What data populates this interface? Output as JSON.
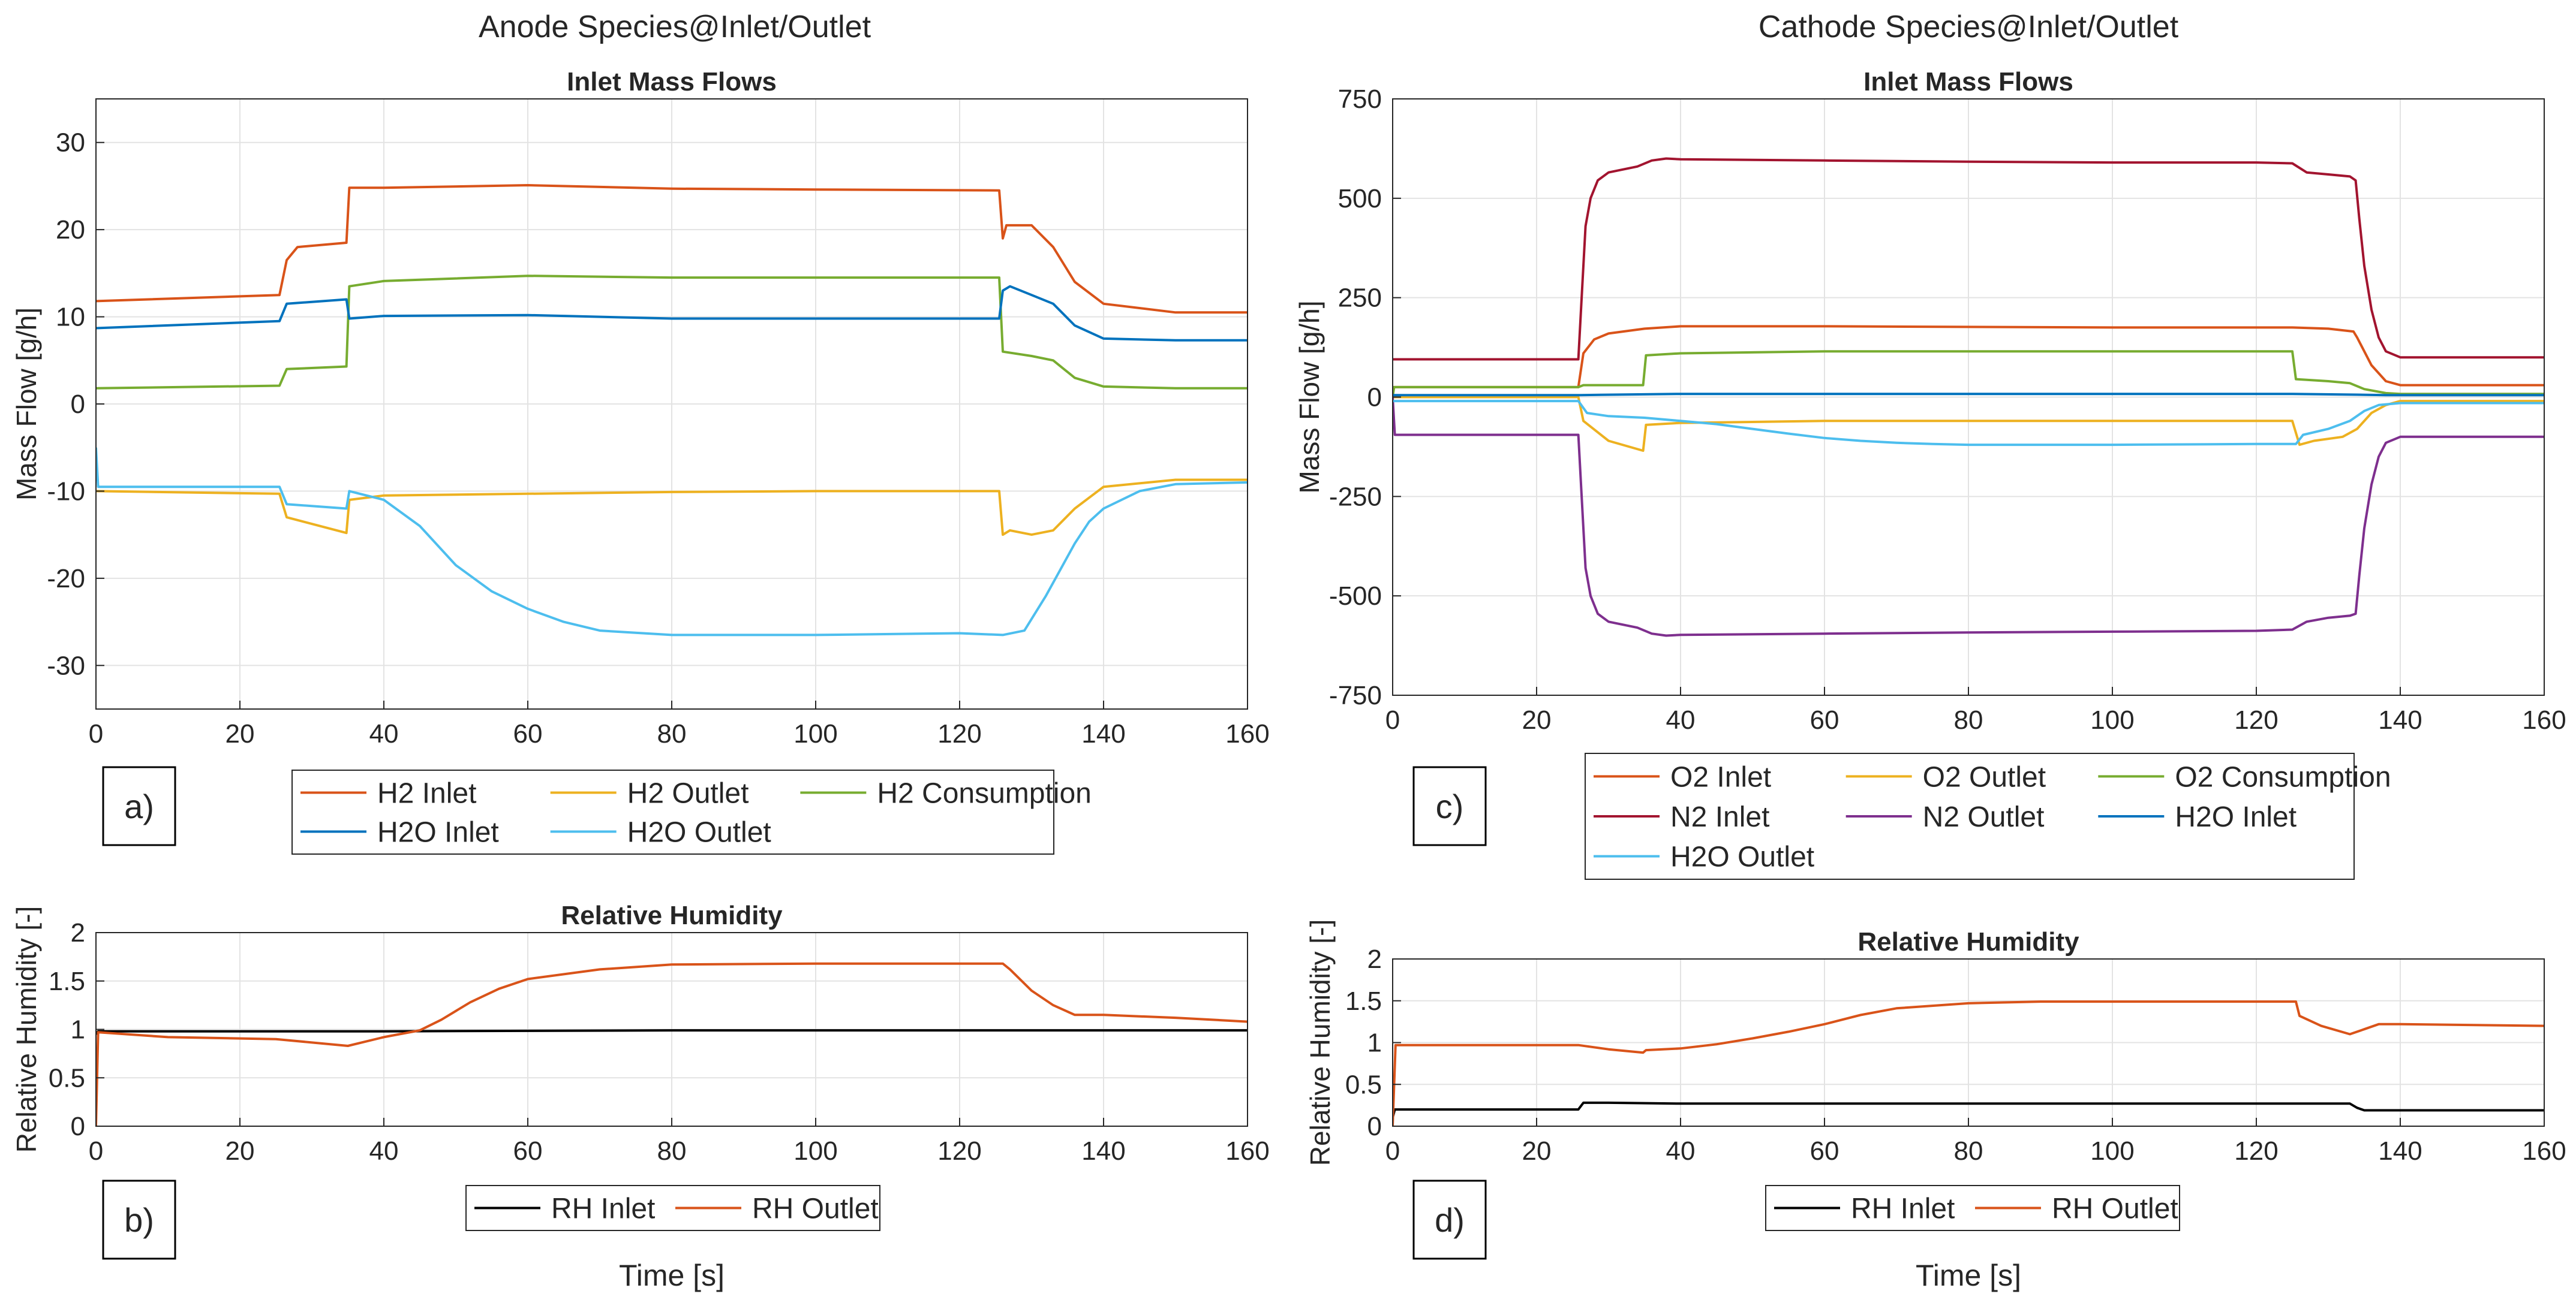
{
  "figure": {
    "anode_title": "Anode Species@Inlet/Outlet",
    "cathode_title": "Cathode Species@Inlet/Outlet",
    "panel_labels": [
      "a)",
      "b)",
      "c)",
      "d)"
    ],
    "colors": {
      "red": "#D95319",
      "yellow": "#EDB120",
      "green": "#77AC30",
      "blue": "#0072BD",
      "cyan": "#4DBEEE",
      "darkred": "#A2142F",
      "purple": "#7E2F8E",
      "black": "#000000"
    }
  },
  "chart_data": [
    {
      "id": "a",
      "type": "line",
      "title": "Inlet Mass Flows",
      "xlabel": "",
      "ylabel": "Mass Flow [g/h]",
      "xlim": [
        0,
        160
      ],
      "ylim": [
        -35,
        35
      ],
      "xticks": [
        0,
        20,
        40,
        60,
        80,
        100,
        120,
        140,
        160
      ],
      "yticks": [
        -30,
        -20,
        -10,
        0,
        10,
        20,
        30
      ],
      "grid": true,
      "legend_cols": 3,
      "series": [
        {
          "name": "H2 Inlet",
          "color": "#D95319",
          "x": [
            0,
            25.5,
            26.5,
            28,
            34.8,
            35.2,
            40,
            60,
            80,
            100,
            125.5,
            126,
            126.5,
            130,
            133,
            136,
            140,
            150,
            160
          ],
          "y": [
            11.8,
            12.5,
            16.5,
            18,
            18.5,
            24.8,
            24.8,
            25.1,
            24.7,
            24.6,
            24.5,
            19,
            20.5,
            20.5,
            18,
            14,
            11.5,
            10.5,
            10.5
          ]
        },
        {
          "name": "H2 Outlet",
          "color": "#EDB120",
          "x": [
            0,
            25.5,
            26.5,
            34.8,
            35.2,
            40,
            60,
            80,
            100,
            125.5,
            126,
            127,
            130,
            133,
            136,
            140,
            150,
            160
          ],
          "y": [
            -10,
            -10.3,
            -13,
            -14.8,
            -11,
            -10.5,
            -10.3,
            -10.1,
            -10,
            -10,
            -15,
            -14.5,
            -15,
            -14.5,
            -12,
            -9.5,
            -8.7,
            -8.7
          ]
        },
        {
          "name": "H2 Consumption",
          "color": "#77AC30",
          "x": [
            0,
            25.5,
            26.5,
            34.8,
            35.2,
            40,
            60,
            80,
            100,
            125.5,
            126,
            130,
            133,
            136,
            140,
            150,
            160
          ],
          "y": [
            1.8,
            2.1,
            4,
            4.3,
            13.5,
            14.1,
            14.7,
            14.5,
            14.5,
            14.5,
            6,
            5.5,
            5,
            3,
            2,
            1.8,
            1.8
          ]
        },
        {
          "name": "H2O Inlet",
          "color": "#0072BD",
          "x": [
            0,
            25.5,
            26.5,
            34.8,
            35.2,
            40,
            60,
            80,
            100,
            125.5,
            126,
            127,
            130,
            133,
            136,
            140,
            150,
            160
          ],
          "y": [
            8.7,
            9.5,
            11.5,
            12,
            9.8,
            10.1,
            10.2,
            9.8,
            9.8,
            9.8,
            13,
            13.5,
            12.5,
            11.5,
            9,
            7.5,
            7.3,
            7.3
          ]
        },
        {
          "name": "H2O Outlet",
          "color": "#4DBEEE",
          "x": [
            0,
            0.3,
            25.5,
            26.5,
            34.8,
            35.2,
            40,
            45,
            50,
            55,
            60,
            65,
            70,
            80,
            100,
            120,
            126,
            129,
            132,
            134,
            136,
            138,
            140,
            145,
            150,
            160
          ],
          "y": [
            -5,
            -9.5,
            -9.5,
            -11.5,
            -12,
            -10,
            -11,
            -14,
            -18.5,
            -21.5,
            -23.5,
            -25,
            -26,
            -26.5,
            -26.5,
            -26.3,
            -26.5,
            -26,
            -22,
            -19,
            -16,
            -13.5,
            -12,
            -10,
            -9.2,
            -9
          ]
        }
      ]
    },
    {
      "id": "b",
      "type": "line",
      "title": "Relative Humidity",
      "xlabel": "Time [s]",
      "ylabel": "Relative Humidity [-]",
      "xlim": [
        0,
        160
      ],
      "ylim": [
        0,
        2
      ],
      "xticks": [
        0,
        20,
        40,
        60,
        80,
        100,
        120,
        140,
        160
      ],
      "yticks": [
        0,
        0.5,
        1,
        1.5,
        2
      ],
      "yticklabels": [
        "0",
        "0.5",
        "1",
        "1.5",
        "2"
      ],
      "grid": true,
      "legend_cols": 2,
      "series": [
        {
          "name": "RH Inlet",
          "color": "#000000",
          "x": [
            0,
            0.3,
            40,
            80,
            120,
            160
          ],
          "y": [
            0.95,
            0.98,
            0.98,
            0.99,
            0.99,
            0.99
          ]
        },
        {
          "name": "RH Outlet",
          "color": "#D95319",
          "x": [
            0,
            0.3,
            10,
            25,
            35,
            40,
            45,
            48,
            52,
            56,
            60,
            70,
            80,
            100,
            126,
            127,
            130,
            133,
            136,
            140,
            150,
            160
          ],
          "y": [
            0,
            0.97,
            0.92,
            0.9,
            0.83,
            0.92,
            0.99,
            1.1,
            1.28,
            1.42,
            1.52,
            1.62,
            1.67,
            1.68,
            1.68,
            1.62,
            1.4,
            1.25,
            1.15,
            1.15,
            1.12,
            1.08
          ]
        }
      ]
    },
    {
      "id": "c",
      "type": "line",
      "title": "Inlet Mass Flows",
      "xlabel": "",
      "ylabel": "Mass Flow [g/h]",
      "xlim": [
        0,
        160
      ],
      "ylim": [
        -750,
        750
      ],
      "xticks": [
        0,
        20,
        40,
        60,
        80,
        100,
        120,
        140,
        160
      ],
      "yticks": [
        -750,
        -500,
        -250,
        0,
        250,
        500,
        750
      ],
      "grid": true,
      "legend_cols": 3,
      "series": [
        {
          "name": "O2 Inlet",
          "color": "#D95319",
          "x": [
            0,
            25.8,
            26.5,
            28,
            30,
            35,
            40,
            60,
            100,
            125,
            130,
            133.5,
            134,
            136,
            138,
            140,
            160
          ],
          "y": [
            25,
            25,
            110,
            145,
            160,
            172,
            178,
            178,
            175,
            175,
            172,
            165,
            150,
            80,
            40,
            30,
            30
          ]
        },
        {
          "name": "O2 Outlet",
          "color": "#EDB120",
          "x": [
            0,
            25.8,
            26.5,
            30,
            34.8,
            35.2,
            40,
            60,
            100,
            125,
            126,
            128,
            132,
            134,
            136,
            138,
            140,
            160
          ],
          "y": [
            0,
            0,
            -60,
            -110,
            -135,
            -70,
            -65,
            -60,
            -60,
            -60,
            -120,
            -110,
            -100,
            -80,
            -40,
            -20,
            -10,
            -10
          ]
        },
        {
          "name": "O2 Consumption",
          "color": "#77AC30",
          "x": [
            0,
            0.2,
            25.8,
            26.5,
            34.8,
            35.2,
            40,
            60,
            100,
            125,
            125.5,
            130,
            133,
            135,
            138,
            140,
            160
          ],
          "y": [
            0,
            25,
            25,
            30,
            30,
            105,
            110,
            115,
            115,
            115,
            45,
            40,
            35,
            20,
            10,
            8,
            8
          ]
        },
        {
          "name": "N2 Inlet",
          "color": "#A2142F",
          "x": [
            0,
            25.8,
            26.2,
            26.8,
            27.5,
            28.5,
            30,
            34,
            36,
            38,
            40,
            60,
            80,
            100,
            120,
            125,
            127,
            130,
            133,
            133.8,
            134.3,
            135,
            136,
            137,
            138,
            140,
            160
          ],
          "y": [
            95,
            95,
            230,
            430,
            500,
            545,
            565,
            580,
            595,
            600,
            598,
            595,
            592,
            590,
            590,
            588,
            565,
            560,
            555,
            545,
            450,
            330,
            220,
            150,
            115,
            100,
            100
          ]
        },
        {
          "name": "N2 Outlet",
          "color": "#7E2F8E",
          "x": [
            0,
            0.3,
            25.8,
            26.2,
            26.8,
            27.5,
            28.5,
            30,
            34,
            36,
            38,
            40,
            60,
            80,
            100,
            120,
            125,
            127,
            130,
            133,
            133.8,
            134.3,
            135,
            136,
            137,
            138,
            140,
            160
          ],
          "y": [
            0,
            -95,
            -95,
            -230,
            -430,
            -500,
            -545,
            -565,
            -580,
            -595,
            -600,
            -598,
            -595,
            -592,
            -590,
            -588,
            -585,
            -565,
            -555,
            -550,
            -545,
            -450,
            -330,
            -220,
            -150,
            -115,
            -100,
            -100
          ]
        },
        {
          "name": "H2O Inlet",
          "color": "#0072BD",
          "x": [
            0,
            26,
            40,
            60,
            100,
            125,
            134,
            138,
            160
          ],
          "y": [
            5,
            5,
            8,
            8,
            8,
            8,
            6,
            5,
            5
          ]
        },
        {
          "name": "H2O Outlet",
          "color": "#4DBEEE",
          "x": [
            0,
            25.8,
            27,
            30,
            35,
            40,
            45,
            50,
            55,
            60,
            65,
            70,
            75,
            80,
            100,
            120,
            125.5,
            126.5,
            130,
            133,
            135,
            137,
            140,
            160
          ],
          "y": [
            -10,
            -10,
            -40,
            -48,
            -52,
            -60,
            -68,
            -80,
            -92,
            -103,
            -110,
            -115,
            -118,
            -120,
            -120,
            -118,
            -118,
            -95,
            -80,
            -60,
            -35,
            -20,
            -15,
            -15
          ]
        }
      ]
    },
    {
      "id": "d",
      "type": "line",
      "title": "Relative Humidity",
      "xlabel": "Time [s]",
      "ylabel": "Relative Humidity [-]",
      "xlim": [
        0,
        160
      ],
      "ylim": [
        0,
        2
      ],
      "xticks": [
        0,
        20,
        40,
        60,
        80,
        100,
        120,
        140,
        160
      ],
      "yticks": [
        0,
        0.5,
        1,
        1.5,
        2
      ],
      "yticklabels": [
        "0",
        "0.5",
        "1",
        "1.5",
        "2"
      ],
      "grid": true,
      "legend_cols": 2,
      "series": [
        {
          "name": "RH Inlet",
          "color": "#000000",
          "x": [
            0,
            0.3,
            25.8,
            26.5,
            30,
            40,
            80,
            120,
            133,
            134,
            135,
            160
          ],
          "y": [
            0.1,
            0.2,
            0.2,
            0.28,
            0.28,
            0.27,
            0.27,
            0.27,
            0.27,
            0.22,
            0.19,
            0.19
          ]
        },
        {
          "name": "RH Outlet",
          "color": "#D95319",
          "x": [
            0,
            0.4,
            25.8,
            30,
            34.8,
            35.2,
            40,
            45,
            50,
            55,
            60,
            65,
            70,
            80,
            90,
            100,
            120,
            125.5,
            126,
            129,
            133,
            135,
            137,
            140,
            160
          ],
          "y": [
            0,
            0.97,
            0.97,
            0.92,
            0.88,
            0.91,
            0.93,
            0.98,
            1.05,
            1.13,
            1.22,
            1.33,
            1.41,
            1.47,
            1.49,
            1.49,
            1.49,
            1.49,
            1.32,
            1.2,
            1.1,
            1.16,
            1.22,
            1.22,
            1.2
          ]
        }
      ]
    }
  ]
}
